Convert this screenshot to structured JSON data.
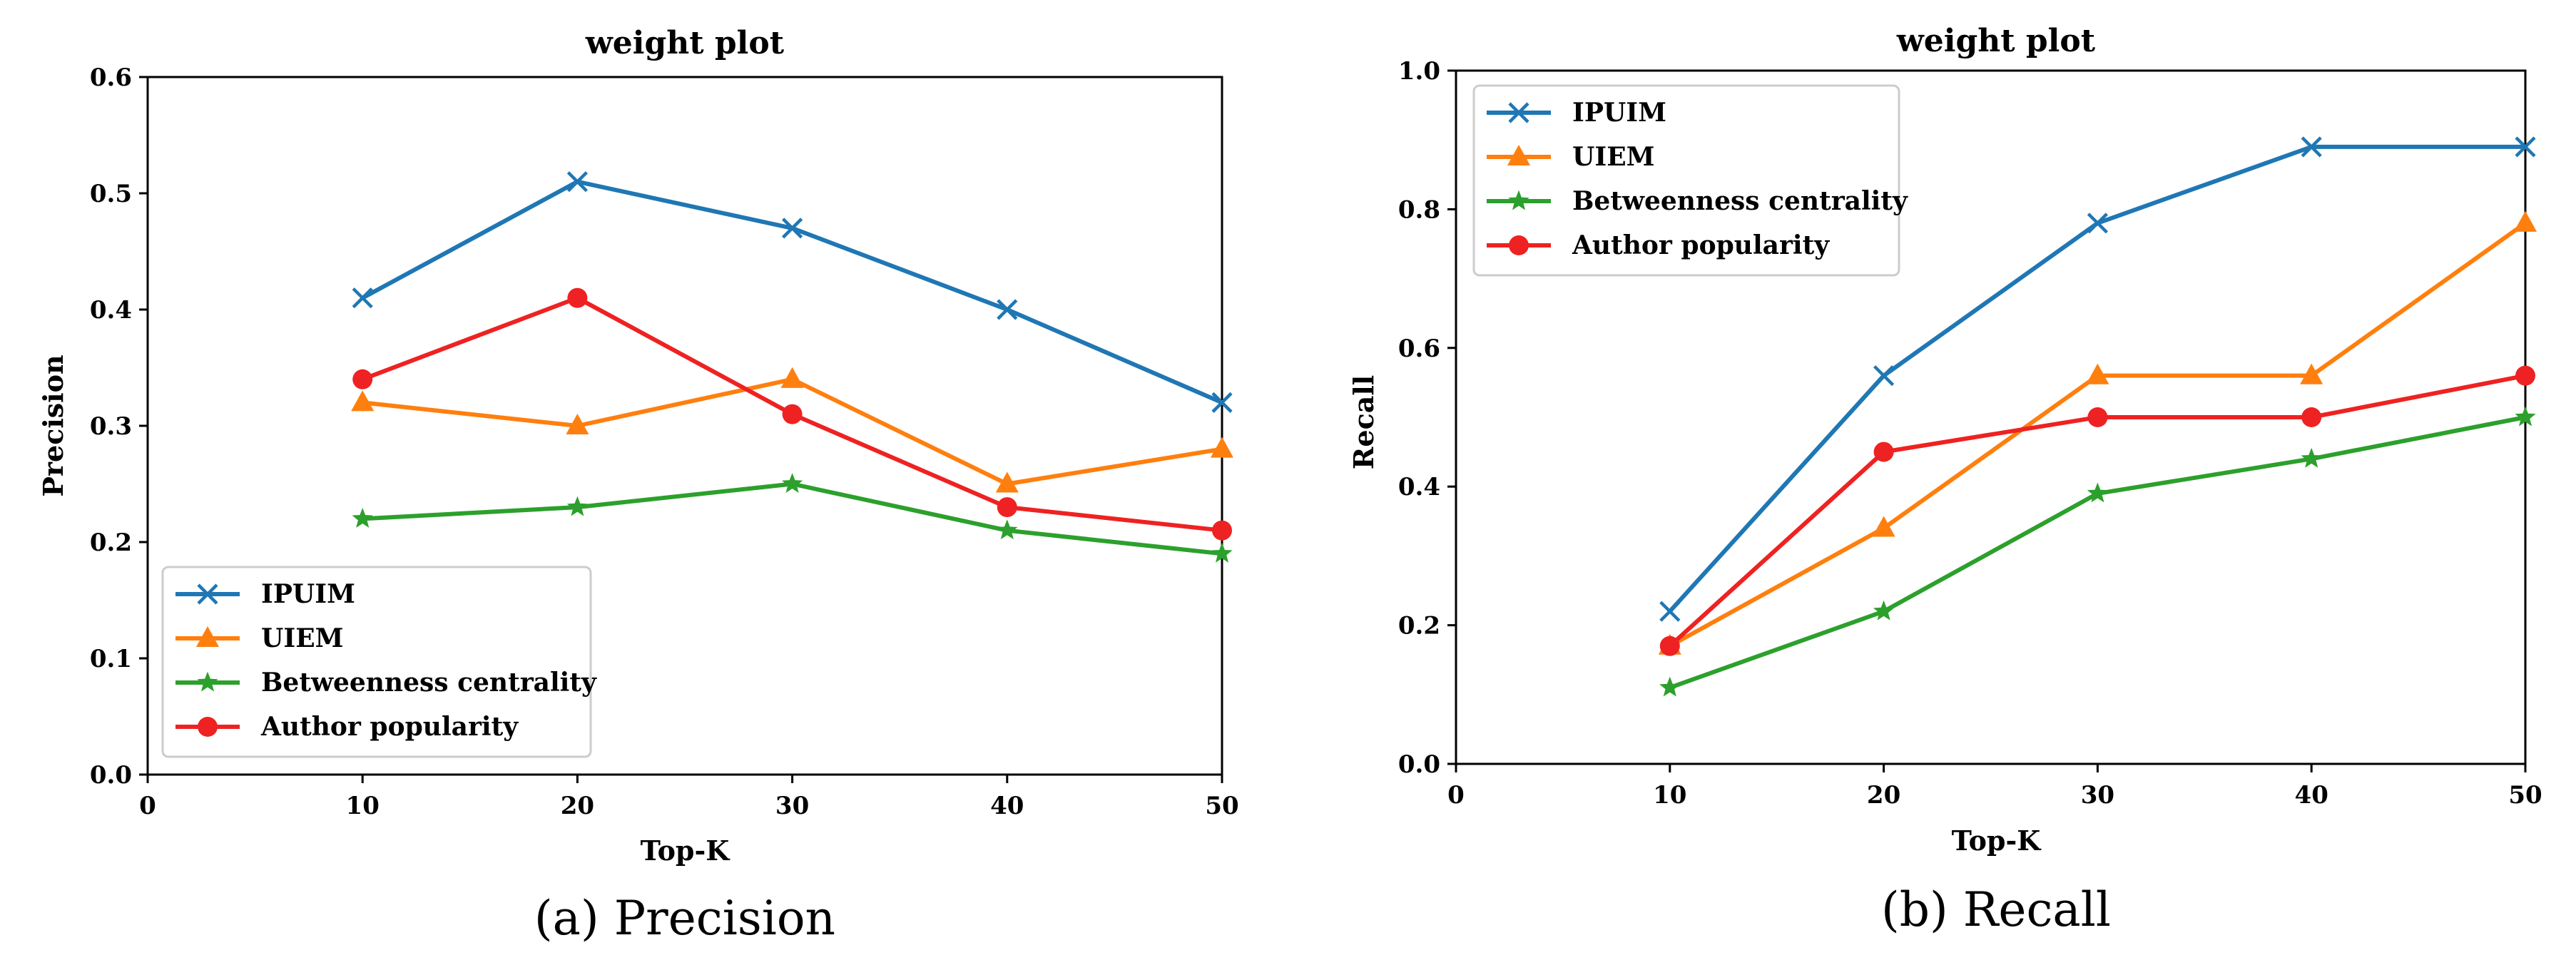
{
  "chart_data": [
    {
      "type": "line",
      "title": "weight plot",
      "xlabel": "Top-K",
      "ylabel": "Precision",
      "caption": "(a) Precision",
      "xlim": [
        0,
        50
      ],
      "ylim": [
        0,
        0.6
      ],
      "xticks": [
        0,
        10,
        20,
        30,
        40,
        50
      ],
      "xtick_labels": [
        "0",
        "10",
        "20",
        "30",
        "40",
        "50"
      ],
      "yticks": [
        0,
        0.1,
        0.2,
        0.3,
        0.4,
        0.5,
        0.6
      ],
      "ytick_labels": [
        "0.0",
        "0.1",
        "0.2",
        "0.3",
        "0.4",
        "0.5",
        "0.6"
      ],
      "legend_position": "lower-left",
      "x": [
        10,
        20,
        30,
        40,
        50
      ],
      "series": [
        {
          "name": "IPUIM",
          "color": "#1f77b4",
          "marker": "x",
          "values": [
            0.41,
            0.51,
            0.47,
            0.4,
            0.32
          ]
        },
        {
          "name": "UIEM",
          "color": "#ff7f0e",
          "marker": "triangle",
          "values": [
            0.32,
            0.3,
            0.34,
            0.25,
            0.28
          ]
        },
        {
          "name": "Betweenness centrality",
          "color": "#2ca02c",
          "marker": "star",
          "values": [
            0.22,
            0.23,
            0.25,
            0.21,
            0.19
          ]
        },
        {
          "name": "Author popularity",
          "color": "#ee2222",
          "marker": "circle",
          "values": [
            0.34,
            0.41,
            0.31,
            0.23,
            0.21
          ]
        }
      ]
    },
    {
      "type": "line",
      "title": "weight plot",
      "xlabel": "Top-K",
      "ylabel": "Recall",
      "caption": "(b) Recall",
      "xlim": [
        0,
        50
      ],
      "ylim": [
        0,
        1.0
      ],
      "xticks": [
        0,
        10,
        20,
        30,
        40,
        50
      ],
      "xtick_labels": [
        "0",
        "10",
        "20",
        "30",
        "40",
        "50"
      ],
      "yticks": [
        0,
        0.2,
        0.4,
        0.6,
        0.8,
        1.0
      ],
      "ytick_labels": [
        "0.0",
        "0.2",
        "0.4",
        "0.6",
        "0.8",
        "1.0"
      ],
      "legend_position": "upper-left",
      "x": [
        10,
        20,
        30,
        40,
        50
      ],
      "series": [
        {
          "name": "IPUIM",
          "color": "#1f77b4",
          "marker": "x",
          "values": [
            0.22,
            0.56,
            0.78,
            0.89,
            0.89
          ]
        },
        {
          "name": "UIEM",
          "color": "#ff7f0e",
          "marker": "triangle",
          "values": [
            0.17,
            0.34,
            0.56,
            0.56,
            0.78
          ]
        },
        {
          "name": "Betweenness centrality",
          "color": "#2ca02c",
          "marker": "star",
          "values": [
            0.11,
            0.22,
            0.39,
            0.44,
            0.5
          ]
        },
        {
          "name": "Author popularity",
          "color": "#ee2222",
          "marker": "circle",
          "values": [
            0.17,
            0.45,
            0.5,
            0.5,
            0.56
          ]
        }
      ]
    }
  ]
}
